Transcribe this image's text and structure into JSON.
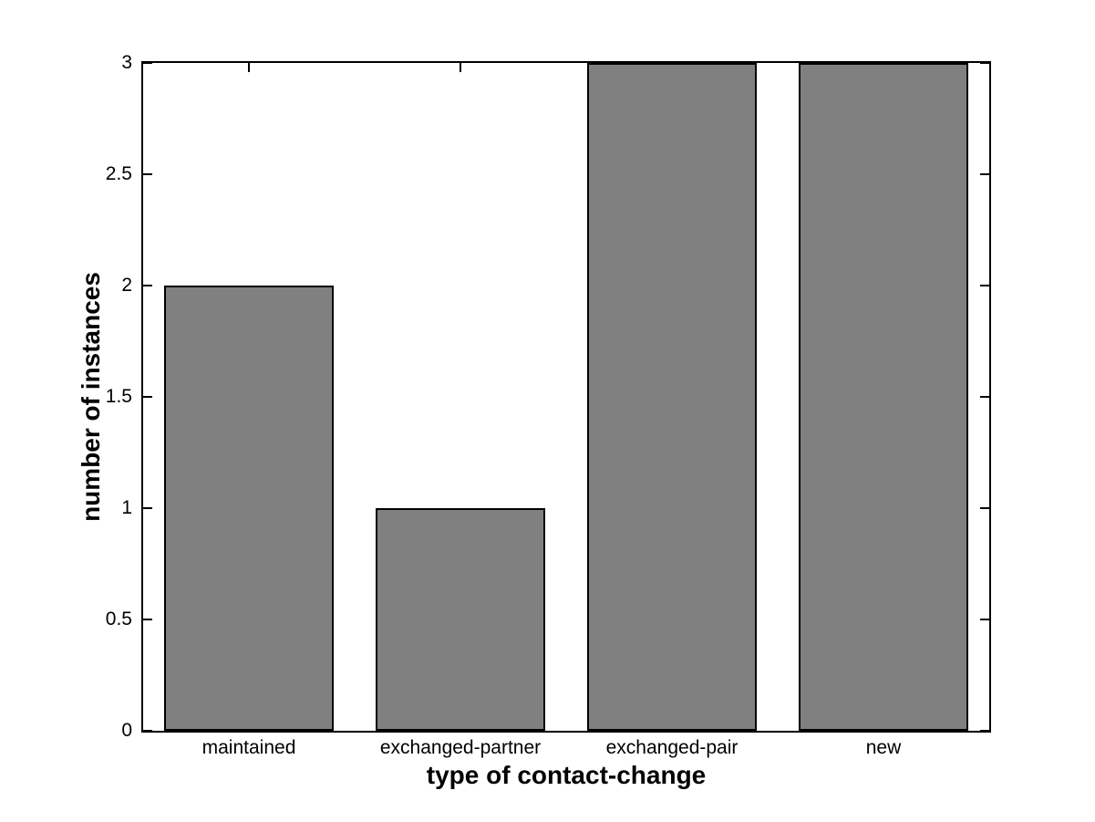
{
  "chart_data": {
    "type": "bar",
    "categories": [
      "maintained",
      "exchanged-partner",
      "exchanged-pair",
      "new"
    ],
    "values": [
      2,
      1,
      3,
      3
    ],
    "title": "",
    "xlabel": "type of contact-change",
    "ylabel": "number of instances",
    "ylim": [
      0,
      3
    ],
    "yticks": [
      0,
      0.5,
      1,
      1.5,
      2,
      2.5,
      3
    ],
    "ytick_labels": [
      "0",
      "0.5",
      "1",
      "1.5",
      "2",
      "2.5",
      "3"
    ],
    "bar_width_fraction": 0.8,
    "grid": false,
    "legend": null,
    "colors": {
      "bar_fill": "#808080",
      "bar_edge": "#000000",
      "axis": "#000000",
      "background": "#ffffff",
      "text": "#000000"
    }
  }
}
